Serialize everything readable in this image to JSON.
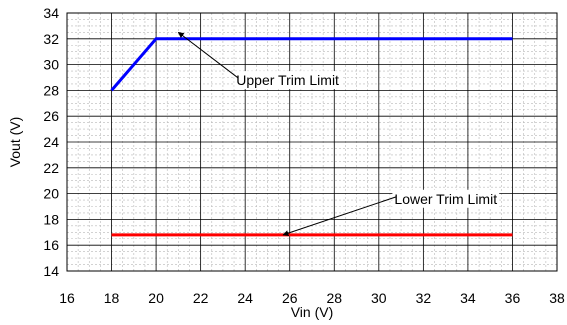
{
  "chart_data": {
    "type": "line",
    "xlabel": "Vin (V)",
    "ylabel": "Vout (V)",
    "xlim": [
      16,
      38
    ],
    "ylim": [
      14,
      34
    ],
    "x_ticks": [
      "16",
      "18",
      "20",
      "22",
      "24",
      "26",
      "28",
      "30",
      "32",
      "34",
      "36",
      "38"
    ],
    "y_ticks": [
      "14",
      "16",
      "18",
      "20",
      "22",
      "24",
      "26",
      "28",
      "30",
      "32",
      "34"
    ],
    "grid": true,
    "series": [
      {
        "color": "#0000ff",
        "x": [
          18,
          20,
          36
        ],
        "y": [
          28,
          32,
          32
        ]
      },
      {
        "color": "#ff0000",
        "x": [
          18,
          36
        ],
        "y": [
          16.8,
          16.8
        ]
      }
    ],
    "annotations": [
      {
        "text": "Upper Trim Limit",
        "arrow_to": [
          21,
          32.5
        ],
        "text_at": [
          23.6,
          28.8
        ]
      },
      {
        "text": "Lower Trim Limit",
        "arrow_to": [
          25.7,
          16.8
        ],
        "text_at": [
          30.7,
          19.6
        ]
      }
    ]
  }
}
